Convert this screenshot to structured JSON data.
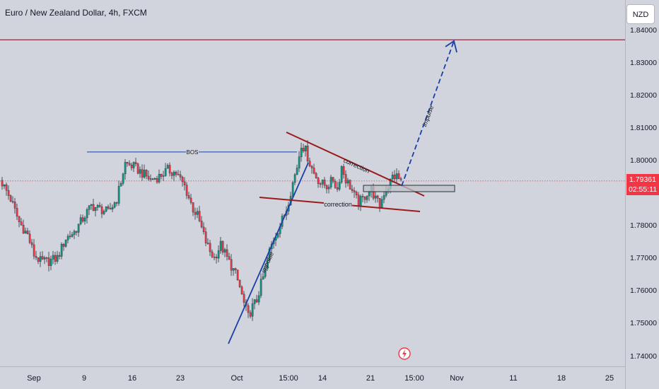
{
  "header": {
    "title": "Euro / New Zealand Dollar, 4h, FXCM",
    "currency_button": "NZD"
  },
  "price_tag": {
    "value": "1.79361",
    "countdown": "02:55:11",
    "color": "#f23645"
  },
  "annotations": {
    "bos": "BOS",
    "correction_upper": "correction",
    "correction_lower": "correction",
    "impulse_1": "impulse",
    "impulse_2": "impulse"
  },
  "colors": {
    "background": "#d1d4dc",
    "up_candle": "#089981",
    "down_candle": "#f23645",
    "trendline": "#9b1b1b",
    "impulse_line": "#1a3fa8",
    "target_line": "#7b1c2c"
  },
  "chart_data": {
    "type": "candlestick",
    "symbol": "EURNZD",
    "timeframe": "4h",
    "x_ticks": [
      "Sep",
      "9",
      "16",
      "23",
      "Oct",
      "15:00",
      "14",
      "21",
      "15:00",
      "Nov",
      "11",
      "18",
      "25"
    ],
    "y_ticks": [
      "1.84000",
      "1.83000",
      "1.82000",
      "1.81000",
      "1.80000",
      "1.78000",
      "1.77000",
      "1.76000",
      "1.75000",
      "1.74000"
    ],
    "ylim": [
      1.7375,
      1.8433
    ],
    "current_price": 1.79361,
    "target_level": 1.8369,
    "close_path": [
      [
        0,
        1.793
      ],
      [
        4,
        1.788
      ],
      [
        8,
        1.781
      ],
      [
        12,
        1.777
      ],
      [
        15,
        1.771
      ],
      [
        18,
        1.769
      ],
      [
        22,
        1.769
      ],
      [
        26,
        1.77
      ],
      [
        30,
        1.776
      ],
      [
        34,
        1.778
      ],
      [
        38,
        1.782
      ],
      [
        42,
        1.786
      ],
      [
        46,
        1.785
      ],
      [
        50,
        1.784
      ],
      [
        54,
        1.788
      ],
      [
        58,
        1.799
      ],
      [
        62,
        1.798
      ],
      [
        66,
        1.796
      ],
      [
        70,
        1.794
      ],
      [
        74,
        1.795
      ],
      [
        78,
        1.797
      ],
      [
        82,
        1.796
      ],
      [
        86,
        1.792
      ],
      [
        90,
        1.785
      ],
      [
        92,
        1.783
      ],
      [
        94,
        1.779
      ],
      [
        96,
        1.775
      ],
      [
        98,
        1.772
      ],
      [
        100,
        1.77
      ],
      [
        103,
        1.774
      ],
      [
        106,
        1.77
      ],
      [
        110,
        1.765
      ],
      [
        112,
        1.761
      ],
      [
        114,
        1.756
      ],
      [
        116,
        1.752
      ],
      [
        118,
        1.755
      ],
      [
        120,
        1.757
      ],
      [
        122,
        1.762
      ],
      [
        124,
        1.766
      ],
      [
        126,
        1.772
      ],
      [
        128,
        1.776
      ],
      [
        131,
        1.78
      ],
      [
        134,
        1.785
      ],
      [
        137,
        1.793
      ],
      [
        139,
        1.798
      ],
      [
        141,
        1.805
      ],
      [
        143,
        1.803
      ],
      [
        145,
        1.799
      ],
      [
        147,
        1.796
      ],
      [
        150,
        1.793
      ],
      [
        153,
        1.792
      ],
      [
        156,
        1.794
      ],
      [
        158,
        1.791
      ],
      [
        160,
        1.798
      ],
      [
        162,
        1.794
      ],
      [
        164,
        1.792
      ],
      [
        166,
        1.789
      ],
      [
        168,
        1.787
      ],
      [
        170,
        1.788
      ],
      [
        172,
        1.79
      ],
      [
        174,
        1.791
      ],
      [
        176,
        1.788
      ],
      [
        178,
        1.786
      ],
      [
        180,
        1.79
      ],
      [
        182,
        1.792
      ],
      [
        184,
        1.795
      ],
      [
        186,
        1.795
      ],
      [
        188,
        1.7936
      ]
    ],
    "levels": {
      "bos": 1.8025
    }
  }
}
